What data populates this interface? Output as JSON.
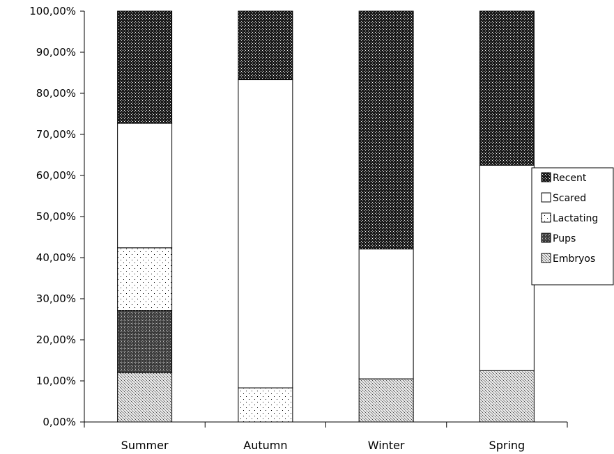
{
  "chart_data": {
    "type": "bar",
    "stacked": true,
    "percent": true,
    "categories": [
      "Summer",
      "Autumn",
      "Winter",
      "Spring"
    ],
    "series": [
      {
        "name": "Embryos",
        "pattern": "cross-light",
        "values": [
          12.0,
          0,
          10.5,
          12.5
        ]
      },
      {
        "name": "Pups",
        "pattern": "cross-dark",
        "values": [
          15.2,
          0,
          0,
          0
        ]
      },
      {
        "name": "Lactating",
        "pattern": "dots",
        "values": [
          15.2,
          8.3,
          0,
          0
        ]
      },
      {
        "name": "Scared",
        "pattern": "white",
        "values": [
          30.3,
          75.0,
          31.6,
          50.0
        ]
      },
      {
        "name": "Recent",
        "pattern": "dense-dark",
        "values": [
          27.3,
          16.7,
          57.9,
          37.5
        ]
      }
    ],
    "legend_order": [
      "Recent",
      "Scared",
      "Lactating",
      "Pups",
      "Embryos"
    ],
    "yticks": [
      "0,00%",
      "10,00%",
      "20,00%",
      "30,00%",
      "40,00%",
      "50,00%",
      "60,00%",
      "70,00%",
      "80,00%",
      "90,00%",
      "100,00%"
    ],
    "ylim": [
      0,
      100
    ],
    "grid": false,
    "legend_position": "right",
    "title": "",
    "xlabel": "",
    "ylabel": ""
  }
}
